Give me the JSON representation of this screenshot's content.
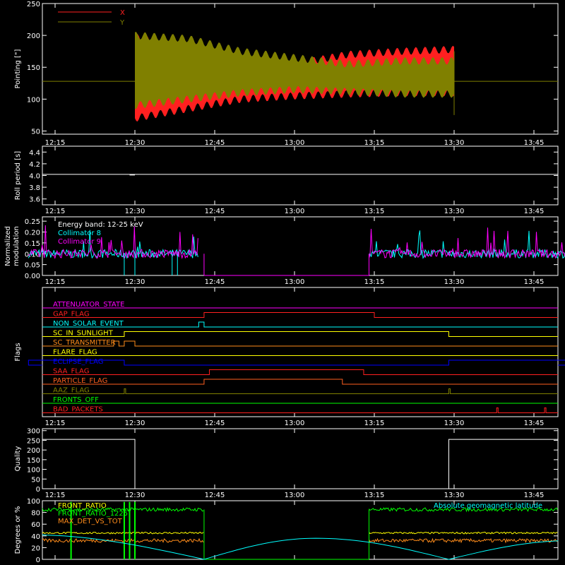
{
  "x_tick_labels": [
    "12:15",
    "12:30",
    "12:45",
    "13:00",
    "13:15",
    "13:30",
    "13:45"
  ],
  "colors": {
    "background": "#000000",
    "axes": "#ffffff",
    "red": "#ff2020",
    "olive": "#808000",
    "magenta": "#ff00ff",
    "cyan": "#00ffff",
    "yellow": "#ffff00",
    "orange": "#ff8c1a",
    "blue": "#0000ff",
    "green": "#00ff00",
    "white": "#ffffff"
  },
  "chart_data": [
    {
      "type": "area",
      "ylabel": "Pointing [\"]",
      "ylim": [
        45,
        250
      ],
      "yticks": [
        50,
        100,
        150,
        200,
        250
      ],
      "legend_placement": "top-left",
      "series": [
        {
          "name": "X",
          "color": "#ff2020",
          "x": [
            "12:30",
            "12:40",
            "12:50",
            "13:00",
            "13:10",
            "13:20",
            "13:30"
          ],
          "y_min": [
            70,
            85,
            100,
            105,
            108,
            110,
            110
          ],
          "y_max": [
            197,
            185,
            165,
            155,
            170,
            175,
            178
          ]
        },
        {
          "name": "Y",
          "color": "#808000",
          "x": [
            "12:30",
            "12:40",
            "12:50",
            "13:00",
            "13:10",
            "13:20",
            "13:30"
          ],
          "y_min": [
            90,
            100,
            110,
            115,
            112,
            108,
            108
          ],
          "y_max": [
            200,
            195,
            175,
            165,
            155,
            160,
            160
          ]
        }
      ],
      "baseline": 128
    },
    {
      "type": "line",
      "ylabel": "Roll period [s]",
      "ylim": [
        3.5,
        4.5
      ],
      "yticks": [
        "3.6",
        "3.8",
        "4.0",
        "4.2",
        "4.4"
      ],
      "value": 4.02
    },
    {
      "type": "line",
      "ylabel": "Normalized modulation",
      "ylim": [
        0,
        0.27
      ],
      "yticks": [
        "0.00",
        "0.05",
        "0.10",
        "0.15",
        "0.20",
        "0.25"
      ],
      "legend": [
        "Energy band: 12-25 keV",
        "Collimator 8",
        "Collimator 9"
      ],
      "series": [
        {
          "name": "Collimator 8",
          "color": "#00ffff",
          "level": 0.1,
          "active": [
            [
              "12:10",
              "12:42"
            ],
            [
              "13:14",
              "13:52"
            ]
          ]
        },
        {
          "name": "Collimator 9",
          "color": "#ff00ff",
          "level": 0.1,
          "active": [
            [
              "12:10",
              "12:42"
            ],
            [
              "13:14",
              "13:52"
            ]
          ]
        }
      ]
    },
    {
      "type": "line",
      "ylabel": "Flags",
      "flags": [
        {
          "name": "ATTENUATOR_STATE",
          "color": "#ff00ff",
          "on": []
        },
        {
          "name": "GAP_FLAG",
          "color": "#ff2020",
          "on": [
            [
              "12:43",
              "13:15"
            ]
          ]
        },
        {
          "name": "NON_SOLAR_EVENT",
          "color": "#00ffff",
          "on": [
            [
              "12:42",
              "12:43"
            ]
          ]
        },
        {
          "name": "SC_IN_SUNLIGHT",
          "color": "#ffff00",
          "on": [
            [
              "12:28",
              "13:29"
            ]
          ]
        },
        {
          "name": "SC_TRANSMITTER",
          "color": "#ff8c1a",
          "on": [
            [
              "12:26",
              "12:27"
            ],
            [
              "12:28",
              "12:30"
            ]
          ]
        },
        {
          "name": "FLARE_FLAG",
          "color": "#ffff00",
          "on": []
        },
        {
          "name": "ECLIPSE_FLAG",
          "color": "#0000ff",
          "on": [
            [
              "12:10",
              "12:28"
            ],
            [
              "13:29",
              "13:52"
            ]
          ]
        },
        {
          "name": "SAA_FLAG",
          "color": "#ff2020",
          "on": [
            [
              "12:44",
              "13:13"
            ]
          ]
        },
        {
          "name": "PARTICLE_FLAG",
          "color": "#ff6020",
          "on": [
            [
              "12:43",
              "13:09"
            ]
          ]
        },
        {
          "name": "AAZ_FLAG",
          "color": "#808000",
          "on": [
            [
              "12:28",
              "12:28"
            ],
            [
              "13:29",
              "13:29"
            ]
          ]
        },
        {
          "name": "FRONTS_OFF",
          "color": "#00ff00",
          "on": []
        },
        {
          "name": "BAD_PACKETS",
          "color": "#ff2020",
          "on": [
            [
              "13:38",
              "13:38"
            ],
            [
              "13:47",
              "13:47"
            ]
          ]
        }
      ]
    },
    {
      "type": "line",
      "ylabel": "Quality",
      "ylim": [
        0,
        310
      ],
      "yticks": [
        0,
        50,
        100,
        150,
        200,
        250,
        300
      ],
      "x": [
        "12:10",
        "12:30",
        "12:30",
        "13:29",
        "13:29",
        "13:52"
      ],
      "values": [
        255,
        255,
        0,
        0,
        255,
        255
      ]
    },
    {
      "type": "line",
      "ylabel": "Degrees or %",
      "ylim": [
        0,
        100
      ],
      "yticks": [
        0,
        20,
        40,
        60,
        80,
        100
      ],
      "legend": [
        "FRONT_RATIO",
        "FRONT_RATIO_1225",
        "MAX_DET_VS_TOT"
      ],
      "annotation": "Absolute geomagnetic latitude",
      "series": [
        {
          "name": "FRONT_RATIO",
          "color": "#ffff00",
          "level": 45
        },
        {
          "name": "FRONT_RATIO_1225",
          "color": "#00ff00",
          "level": 85
        },
        {
          "name": "MAX_DET_VS_TOT",
          "color": "#ff8c1a",
          "level": 32
        },
        {
          "name": "Absolute geomagnetic latitude",
          "color": "#00ffff",
          "x": [
            "12:10",
            "12:43",
            "13:04",
            "13:29",
            "13:52"
          ],
          "values": [
            42,
            0,
            36,
            0,
            32
          ]
        }
      ]
    }
  ]
}
